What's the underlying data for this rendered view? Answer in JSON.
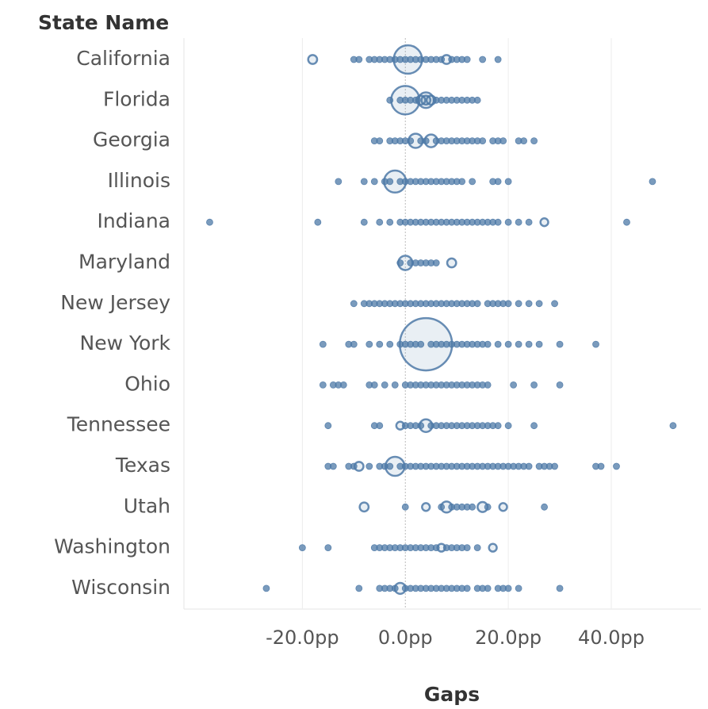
{
  "chart_data": {
    "type": "strip",
    "y_label": "State Name",
    "x_label": "Gaps",
    "color": "#4e79a7",
    "categories": [
      "California",
      "Florida",
      "Georgia",
      "Illinois",
      "Indiana",
      "Maryland",
      "New Jersey",
      "New York",
      "Ohio",
      "Tennessee",
      "Texas",
      "Utah",
      "Washington",
      "Wisconsin"
    ],
    "xlim": [
      -43,
      57.4
    ],
    "xticks": [
      {
        "value": -20,
        "label": "-20.0pp"
      },
      {
        "value": 0,
        "label": "0.0pp"
      },
      {
        "value": 20,
        "label": "20.0pp"
      },
      {
        "value": 40,
        "label": "40.0pp"
      }
    ],
    "grid": true,
    "points": [
      [
        [
          -18,
          2
        ],
        [
          -10,
          1
        ],
        [
          -9,
          1
        ],
        [
          -7,
          1
        ],
        [
          -6,
          1
        ],
        [
          -5,
          1
        ],
        [
          -4,
          1
        ],
        [
          -3,
          1
        ],
        [
          -2,
          1
        ],
        [
          -1,
          1
        ],
        [
          0,
          1
        ],
        [
          1,
          1
        ],
        [
          2,
          1
        ],
        [
          3,
          1
        ],
        [
          4,
          1
        ],
        [
          5,
          1
        ],
        [
          6,
          1
        ],
        [
          7,
          1
        ],
        [
          8,
          2
        ],
        [
          9,
          1
        ],
        [
          10,
          1
        ],
        [
          11,
          1
        ],
        [
          12,
          1
        ],
        [
          15,
          1
        ],
        [
          18,
          1
        ],
        [
          0.5,
          20
        ]
      ],
      [
        [
          -3,
          1
        ],
        [
          -1,
          1
        ],
        [
          0,
          1
        ],
        [
          1,
          1
        ],
        [
          2,
          1
        ],
        [
          3,
          2
        ],
        [
          4,
          2
        ],
        [
          5,
          2
        ],
        [
          6,
          1
        ],
        [
          7,
          1
        ],
        [
          8,
          1
        ],
        [
          9,
          1
        ],
        [
          10,
          1
        ],
        [
          11,
          1
        ],
        [
          12,
          1
        ],
        [
          13,
          1
        ],
        [
          14,
          1
        ],
        [
          0,
          20
        ],
        [
          4,
          6
        ]
      ],
      [
        [
          -6,
          1
        ],
        [
          -5,
          1
        ],
        [
          -3,
          1
        ],
        [
          -2,
          1
        ],
        [
          -1,
          1
        ],
        [
          0,
          1
        ],
        [
          1,
          1
        ],
        [
          3,
          1
        ],
        [
          4,
          1
        ],
        [
          6,
          1
        ],
        [
          7,
          1
        ],
        [
          8,
          1
        ],
        [
          9,
          1
        ],
        [
          10,
          1
        ],
        [
          11,
          1
        ],
        [
          12,
          1
        ],
        [
          13,
          1
        ],
        [
          14,
          1
        ],
        [
          15,
          1
        ],
        [
          17,
          1
        ],
        [
          18,
          1
        ],
        [
          19,
          1
        ],
        [
          22,
          1
        ],
        [
          23,
          1
        ],
        [
          25,
          1
        ],
        [
          2,
          5
        ],
        [
          5,
          4
        ]
      ],
      [
        [
          -13,
          1
        ],
        [
          -8,
          1
        ],
        [
          -6,
          1
        ],
        [
          -4,
          1
        ],
        [
          -3,
          1
        ],
        [
          -1,
          1
        ],
        [
          0,
          1
        ],
        [
          1,
          1
        ],
        [
          2,
          1
        ],
        [
          3,
          1
        ],
        [
          4,
          1
        ],
        [
          5,
          1
        ],
        [
          6,
          1
        ],
        [
          7,
          1
        ],
        [
          8,
          1
        ],
        [
          9,
          1
        ],
        [
          10,
          1
        ],
        [
          11,
          1
        ],
        [
          13,
          1
        ],
        [
          17,
          1
        ],
        [
          18,
          1
        ],
        [
          20,
          1
        ],
        [
          48,
          1
        ],
        [
          -2,
          12
        ]
      ],
      [
        [
          -38,
          1
        ],
        [
          -17,
          1
        ],
        [
          -8,
          1
        ],
        [
          -5,
          1
        ],
        [
          -3,
          1
        ],
        [
          -1,
          1
        ],
        [
          0,
          1
        ],
        [
          1,
          1
        ],
        [
          2,
          1
        ],
        [
          3,
          1
        ],
        [
          4,
          1
        ],
        [
          5,
          1
        ],
        [
          6,
          1
        ],
        [
          7,
          1
        ],
        [
          8,
          1
        ],
        [
          9,
          1
        ],
        [
          10,
          1
        ],
        [
          11,
          1
        ],
        [
          12,
          1
        ],
        [
          13,
          1
        ],
        [
          14,
          1
        ],
        [
          15,
          1
        ],
        [
          16,
          1
        ],
        [
          17,
          1
        ],
        [
          18,
          1
        ],
        [
          20,
          1
        ],
        [
          22,
          1
        ],
        [
          24,
          1
        ],
        [
          27,
          1.5
        ],
        [
          43,
          1
        ]
      ],
      [
        [
          -1,
          1
        ],
        [
          1,
          1
        ],
        [
          2,
          1
        ],
        [
          3,
          1
        ],
        [
          4,
          1
        ],
        [
          5,
          1
        ],
        [
          6,
          1
        ],
        [
          9,
          2
        ],
        [
          0,
          5
        ]
      ],
      [
        [
          -10,
          1
        ],
        [
          -8,
          1
        ],
        [
          -7,
          1
        ],
        [
          -6,
          1
        ],
        [
          -5,
          1
        ],
        [
          -4,
          1
        ],
        [
          -3,
          1
        ],
        [
          -2,
          1
        ],
        [
          -1,
          1
        ],
        [
          0,
          1
        ],
        [
          1,
          1
        ],
        [
          2,
          1
        ],
        [
          3,
          1
        ],
        [
          4,
          1
        ],
        [
          5,
          1
        ],
        [
          6,
          1
        ],
        [
          7,
          1
        ],
        [
          8,
          1
        ],
        [
          9,
          1
        ],
        [
          10,
          1
        ],
        [
          11,
          1
        ],
        [
          12,
          1
        ],
        [
          13,
          1
        ],
        [
          14,
          1
        ],
        [
          16,
          1
        ],
        [
          17,
          1
        ],
        [
          18,
          1
        ],
        [
          19,
          1
        ],
        [
          20,
          1
        ],
        [
          22,
          1
        ],
        [
          24,
          1
        ],
        [
          26,
          1
        ],
        [
          29,
          1
        ]
      ],
      [
        [
          -16,
          1
        ],
        [
          -11,
          1
        ],
        [
          -10,
          1
        ],
        [
          -7,
          1
        ],
        [
          -5,
          1
        ],
        [
          -3,
          1
        ],
        [
          -1,
          1
        ],
        [
          0,
          1
        ],
        [
          1,
          1
        ],
        [
          2,
          1
        ],
        [
          3,
          1
        ],
        [
          5,
          1
        ],
        [
          6,
          1
        ],
        [
          7,
          1
        ],
        [
          8,
          1
        ],
        [
          9,
          1
        ],
        [
          10,
          1
        ],
        [
          11,
          1
        ],
        [
          12,
          1
        ],
        [
          13,
          1
        ],
        [
          14,
          1
        ],
        [
          15,
          1
        ],
        [
          16,
          1
        ],
        [
          18,
          1
        ],
        [
          20,
          1
        ],
        [
          22,
          1
        ],
        [
          24,
          1
        ],
        [
          26,
          1
        ],
        [
          30,
          1
        ],
        [
          37,
          1
        ],
        [
          4,
          68
        ]
      ],
      [
        [
          -16,
          1
        ],
        [
          -14,
          1
        ],
        [
          -13,
          1
        ],
        [
          -12,
          1
        ],
        [
          -7,
          1
        ],
        [
          -6,
          1
        ],
        [
          -4,
          1
        ],
        [
          -2,
          1
        ],
        [
          0,
          1
        ],
        [
          1,
          1
        ],
        [
          2,
          1
        ],
        [
          3,
          1
        ],
        [
          4,
          1
        ],
        [
          5,
          1
        ],
        [
          6,
          1
        ],
        [
          7,
          1
        ],
        [
          8,
          1
        ],
        [
          9,
          1
        ],
        [
          10,
          1
        ],
        [
          11,
          1
        ],
        [
          12,
          1
        ],
        [
          13,
          1
        ],
        [
          14,
          1
        ],
        [
          15,
          1
        ],
        [
          16,
          1
        ],
        [
          21,
          1
        ],
        [
          25,
          1
        ],
        [
          30,
          1
        ]
      ],
      [
        [
          -15,
          1
        ],
        [
          -6,
          1
        ],
        [
          -5,
          1
        ],
        [
          -1,
          1.5
        ],
        [
          0,
          1
        ],
        [
          1,
          1
        ],
        [
          2,
          1
        ],
        [
          3,
          1
        ],
        [
          5,
          1
        ],
        [
          6,
          1
        ],
        [
          7,
          1
        ],
        [
          8,
          1
        ],
        [
          9,
          1
        ],
        [
          10,
          1
        ],
        [
          11,
          1
        ],
        [
          12,
          1
        ],
        [
          13,
          1
        ],
        [
          14,
          1
        ],
        [
          15,
          1
        ],
        [
          16,
          1
        ],
        [
          17,
          1
        ],
        [
          18,
          1
        ],
        [
          20,
          1
        ],
        [
          25,
          1
        ],
        [
          52,
          1
        ],
        [
          4,
          4
        ]
      ],
      [
        [
          -15,
          1
        ],
        [
          -14,
          1
        ],
        [
          -11,
          1
        ],
        [
          -10,
          1
        ],
        [
          -9,
          2
        ],
        [
          -7,
          1
        ],
        [
          -5,
          1
        ],
        [
          -4,
          1
        ],
        [
          -3,
          1
        ],
        [
          -1,
          1
        ],
        [
          0,
          1
        ],
        [
          1,
          1
        ],
        [
          2,
          1
        ],
        [
          3,
          1
        ],
        [
          4,
          1
        ],
        [
          5,
          1
        ],
        [
          6,
          1
        ],
        [
          7,
          1
        ],
        [
          8,
          1
        ],
        [
          9,
          1
        ],
        [
          10,
          1
        ],
        [
          11,
          1
        ],
        [
          12,
          1
        ],
        [
          13,
          1
        ],
        [
          14,
          1
        ],
        [
          15,
          1
        ],
        [
          16,
          1
        ],
        [
          17,
          1
        ],
        [
          18,
          1
        ],
        [
          19,
          1
        ],
        [
          20,
          1
        ],
        [
          21,
          1
        ],
        [
          22,
          1
        ],
        [
          23,
          1
        ],
        [
          24,
          1
        ],
        [
          26,
          1
        ],
        [
          27,
          1
        ],
        [
          28,
          1
        ],
        [
          29,
          1
        ],
        [
          37,
          1
        ],
        [
          38,
          1
        ],
        [
          41,
          1
        ],
        [
          -2,
          9
        ]
      ],
      [
        [
          -8,
          2
        ],
        [
          0,
          1
        ],
        [
          4,
          1.5
        ],
        [
          7,
          1
        ],
        [
          8,
          3
        ],
        [
          9,
          1
        ],
        [
          10,
          1
        ],
        [
          11,
          1
        ],
        [
          12,
          1
        ],
        [
          13,
          1
        ],
        [
          15,
          2.5
        ],
        [
          16,
          1
        ],
        [
          19,
          1.5
        ],
        [
          27,
          1
        ]
      ],
      [
        [
          -20,
          1
        ],
        [
          -15,
          1
        ],
        [
          -6,
          1
        ],
        [
          -5,
          1
        ],
        [
          -4,
          1
        ],
        [
          -3,
          1
        ],
        [
          -2,
          1
        ],
        [
          -1,
          1
        ],
        [
          0,
          1
        ],
        [
          1,
          1
        ],
        [
          2,
          1
        ],
        [
          3,
          1
        ],
        [
          4,
          1
        ],
        [
          5,
          1
        ],
        [
          6,
          1
        ],
        [
          7,
          1.5
        ],
        [
          8,
          1
        ],
        [
          9,
          1
        ],
        [
          10,
          1
        ],
        [
          11,
          1
        ],
        [
          12,
          1
        ],
        [
          14,
          1
        ],
        [
          17,
          1.5
        ]
      ],
      [
        [
          -27,
          1
        ],
        [
          -9,
          1
        ],
        [
          -5,
          1
        ],
        [
          -4,
          1
        ],
        [
          -3,
          1
        ],
        [
          -2,
          1
        ],
        [
          -1,
          3
        ],
        [
          0,
          1
        ],
        [
          1,
          1
        ],
        [
          2,
          1
        ],
        [
          3,
          1
        ],
        [
          4,
          1
        ],
        [
          5,
          1
        ],
        [
          6,
          1
        ],
        [
          7,
          1
        ],
        [
          8,
          1
        ],
        [
          9,
          1
        ],
        [
          10,
          1
        ],
        [
          11,
          1
        ],
        [
          12,
          1
        ],
        [
          14,
          1
        ],
        [
          15,
          1
        ],
        [
          16,
          1
        ],
        [
          18,
          1
        ],
        [
          19,
          1
        ],
        [
          20,
          1
        ],
        [
          22,
          1
        ],
        [
          30,
          1
        ]
      ]
    ]
  }
}
